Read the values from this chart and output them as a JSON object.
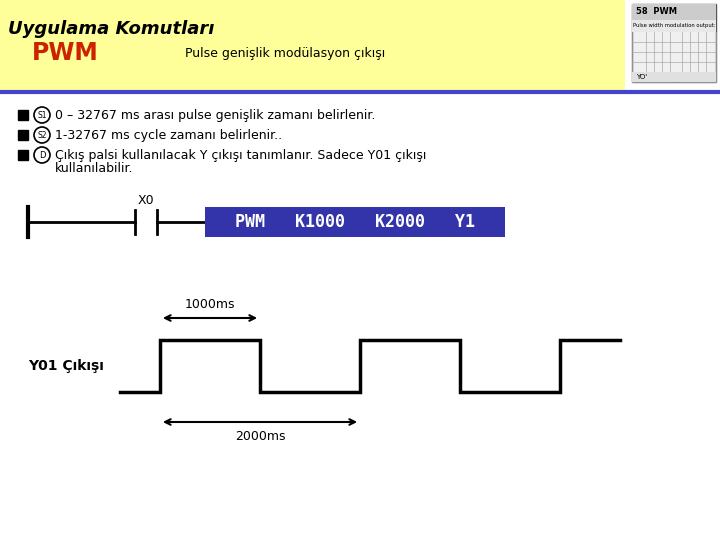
{
  "title": "Uygulama Komutları",
  "pwm_label": "PWM",
  "pwm_desc": "Pulse genişlik modülasyon çıkışı",
  "bg_color": "#FFFF99",
  "cmd_box_text": "PWM   K1000   K2000   Y1",
  "cmd_box_color": "#3333AA",
  "cmd_box_text_color": "#FFFFFF",
  "x0_label": "X0",
  "waveform_label": "Y01 Çıkışı",
  "ms1000_label": "1000ms",
  "ms2000_label": "2000ms",
  "bullet_s1": "0 – 32767 ms arası pulse genişlik zamanı belirlenir.",
  "bullet_s2": "1-32767 ms cycle zamanı belirlenir..",
  "bullet_d1": "Çıkış palsi kullanılacak Y çıkışı tanımlanır. Sadece Y01 çıkışı",
  "bullet_d2": "kullanılabilir."
}
